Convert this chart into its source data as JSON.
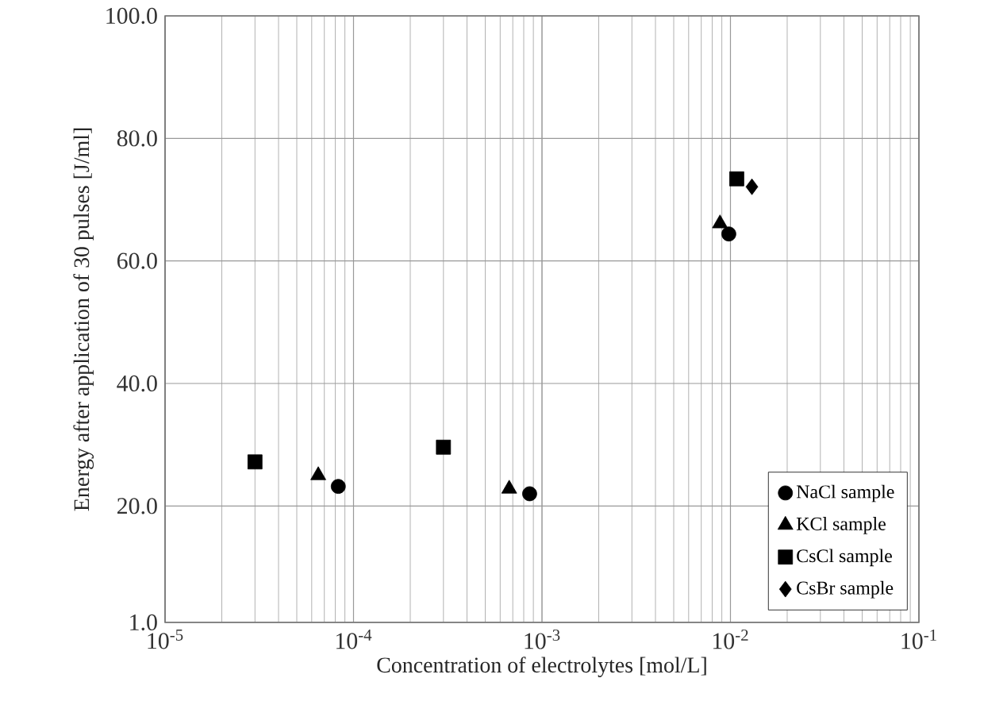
{
  "chart_data": {
    "type": "scatter",
    "xlabel": "Concentration of electrolytes [mol/L]",
    "ylabel": "Energy after application of 30 pulses  [J/ml]",
    "log": "x",
    "grid": true,
    "legend": "bottom right",
    "xlim": [
      1e-05,
      0.1
    ],
    "xticks": [
      {
        "value": 1e-05,
        "label": "10$^{-5}$"
      },
      {
        "value": 0.0001,
        "label": "10$^{-4}$"
      },
      {
        "value": 0.001,
        "label": "10$^{-3}$"
      },
      {
        "value": 0.01,
        "label": "10$^{-2}$"
      },
      {
        "value": 0.1,
        "label": "10$^{-1}$"
      }
    ],
    "ylim": [
      1,
      100
    ],
    "yticks": [
      {
        "value": 1,
        "label": "1.0"
      },
      {
        "value": 20,
        "label": "20.0"
      },
      {
        "value": 40,
        "label": "40.0"
      },
      {
        "value": 60,
        "label": "60.0"
      },
      {
        "value": 80,
        "label": "80.0"
      },
      {
        "value": 100,
        "label": "100.0"
      }
    ],
    "series": [
      {
        "name": "NaCl sample",
        "color": "#000000",
        "marker": "circle",
        "x": [
          8.3e-05,
          0.00086,
          0.0098
        ],
        "values": [
          23.2,
          22.0,
          64.4
        ]
      },
      {
        "name": "KCl sample",
        "color": "#000000",
        "marker": "triangle",
        "x": [
          6.5e-05,
          0.00067,
          0.0088
        ],
        "values": [
          25.0,
          22.8,
          66.1
        ]
      },
      {
        "name": "CsCl sample",
        "color": "#000000",
        "marker": "square",
        "x": [
          3e-05,
          0.0003,
          0.0108
        ],
        "values": [
          27.2,
          29.6,
          73.4
        ]
      },
      {
        "name": "CsBr sample",
        "color": "#000000",
        "marker": "diamond",
        "x": [
          0.013
        ],
        "values": [
          72.1
        ]
      }
    ]
  }
}
